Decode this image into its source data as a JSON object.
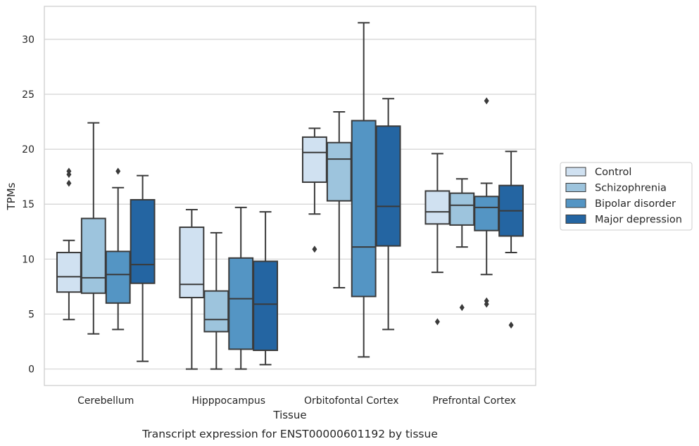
{
  "chart_data": {
    "type": "box",
    "title": "",
    "caption": "Transcript expression for ENST00000601192 by tissue",
    "xlabel": "Tissue",
    "ylabel": "TPMs",
    "ylim": [
      -1.5,
      33
    ],
    "yticks": [
      0,
      5,
      10,
      15,
      20,
      25,
      30
    ],
    "grid": "horizontal",
    "legend_position": "right",
    "categories": [
      "Cerebellum",
      "Hipppocampus",
      "Orbitofontal Cortex",
      "Prefrontal Cortex"
    ],
    "series": [
      {
        "name": "Control",
        "color": "#d0e1f1",
        "boxes": [
          {
            "whisker_low": 4.5,
            "q1": 7.0,
            "median": 8.4,
            "q3": 10.6,
            "whisker_high": 11.7,
            "outliers": [
              16.9,
              17.7,
              18.0
            ]
          },
          {
            "whisker_low": 0.0,
            "q1": 6.5,
            "median": 7.7,
            "q3": 12.9,
            "whisker_high": 14.5,
            "outliers": []
          },
          {
            "whisker_low": 14.1,
            "q1": 17.0,
            "median": 19.7,
            "q3": 21.1,
            "whisker_high": 21.9,
            "outliers": [
              10.9
            ]
          },
          {
            "whisker_low": 8.8,
            "q1": 13.2,
            "median": 14.3,
            "q3": 16.2,
            "whisker_high": 19.6,
            "outliers": [
              4.3
            ]
          }
        ]
      },
      {
        "name": "Schizophrenia",
        "color": "#9dc4dd",
        "boxes": [
          {
            "whisker_low": 3.2,
            "q1": 6.9,
            "median": 8.3,
            "q3": 13.7,
            "whisker_high": 22.4,
            "outliers": []
          },
          {
            "whisker_low": 0.0,
            "q1": 3.4,
            "median": 4.5,
            "q3": 7.1,
            "whisker_high": 12.4,
            "outliers": []
          },
          {
            "whisker_low": 7.4,
            "q1": 15.3,
            "median": 19.1,
            "q3": 20.6,
            "whisker_high": 23.4,
            "outliers": []
          },
          {
            "whisker_low": 11.1,
            "q1": 13.1,
            "median": 14.9,
            "q3": 16.0,
            "whisker_high": 17.3,
            "outliers": [
              5.6
            ]
          }
        ]
      },
      {
        "name": "Bipolar disorder",
        "color": "#5495c4",
        "boxes": [
          {
            "whisker_low": 3.6,
            "q1": 6.0,
            "median": 8.6,
            "q3": 10.7,
            "whisker_high": 16.5,
            "outliers": [
              18.0
            ]
          },
          {
            "whisker_low": 0.0,
            "q1": 1.8,
            "median": 6.4,
            "q3": 10.1,
            "whisker_high": 14.7,
            "outliers": []
          },
          {
            "whisker_low": 1.1,
            "q1": 6.6,
            "median": 11.1,
            "q3": 22.6,
            "whisker_high": 31.5,
            "outliers": []
          },
          {
            "whisker_low": 8.6,
            "q1": 12.6,
            "median": 14.7,
            "q3": 15.7,
            "whisker_high": 16.9,
            "outliers": [
              5.9,
              6.2,
              24.4
            ]
          }
        ]
      },
      {
        "name": "Major depression",
        "color": "#2465a2",
        "boxes": [
          {
            "whisker_low": 0.7,
            "q1": 7.8,
            "median": 9.5,
            "q3": 15.4,
            "whisker_high": 17.6,
            "outliers": []
          },
          {
            "whisker_low": 0.4,
            "q1": 1.7,
            "median": 5.9,
            "q3": 9.8,
            "whisker_high": 14.3,
            "outliers": []
          },
          {
            "whisker_low": 3.6,
            "q1": 11.2,
            "median": 14.8,
            "q3": 22.1,
            "whisker_high": 24.6,
            "outliers": []
          },
          {
            "whisker_low": 10.6,
            "q1": 12.1,
            "median": 14.4,
            "q3": 16.7,
            "whisker_high": 19.8,
            "outliers": [
              4.0
            ]
          }
        ]
      }
    ]
  }
}
